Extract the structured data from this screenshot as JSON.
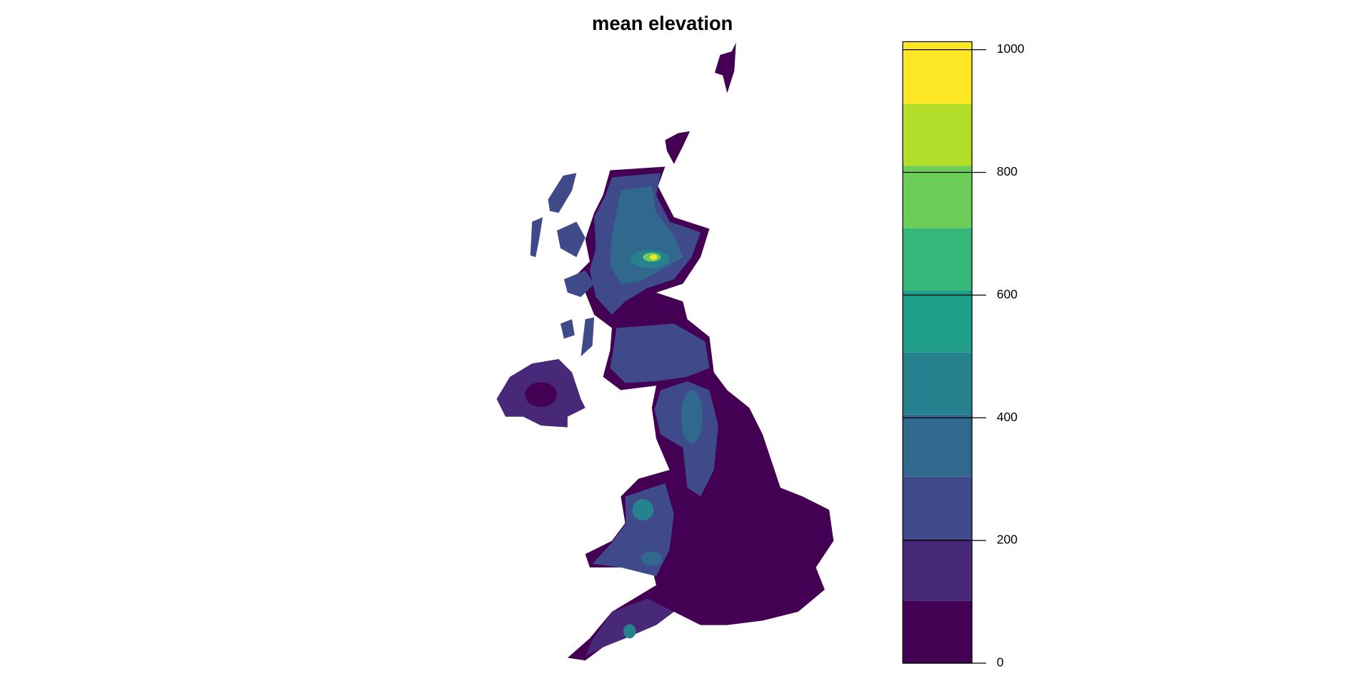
{
  "title": "mean elevation",
  "legend": {
    "lim": [
      0,
      1013
    ],
    "bins": [
      0,
      101.3,
      202.6,
      303.9,
      405.2,
      506.5,
      607.8,
      709.1,
      810.4,
      911.7,
      1013
    ],
    "colors": [
      "#440154",
      "#482878",
      "#3e4a89",
      "#31688e",
      "#26828e",
      "#1f9e89",
      "#35b779",
      "#6dcd59",
      "#b4de2c",
      "#fde725"
    ],
    "ticks": [
      0,
      200,
      400,
      600,
      800,
      1000
    ]
  }
}
